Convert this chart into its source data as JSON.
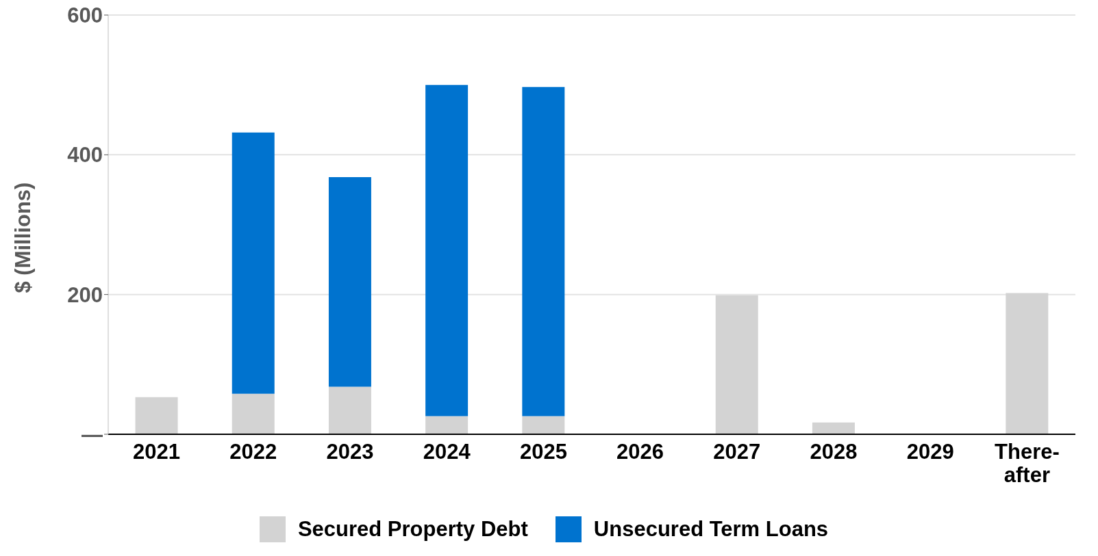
{
  "chart_data": {
    "type": "bar",
    "stacked": true,
    "ylabel": "$ (Millions)",
    "categories": [
      "2021",
      "2022",
      "2023",
      "2024",
      "2025",
      "2026",
      "2027",
      "2028",
      "2029",
      "There-\nafter"
    ],
    "series": [
      {
        "name": "Secured Property Debt",
        "color": "#d3d3d3",
        "values": [
          53,
          58,
          68,
          26,
          26,
          null,
          199,
          17,
          null,
          202
        ]
      },
      {
        "name": "Unsecured Term Loans",
        "color": "#0073cf",
        "values": [
          null,
          374,
          300,
          474,
          471,
          null,
          null,
          null,
          null,
          null
        ]
      }
    ],
    "ylim": [
      0,
      600
    ],
    "yticks": [
      {
        "value": 0,
        "label": "—"
      },
      200,
      400,
      600
    ],
    "grid": "y",
    "legend": "bottom"
  }
}
